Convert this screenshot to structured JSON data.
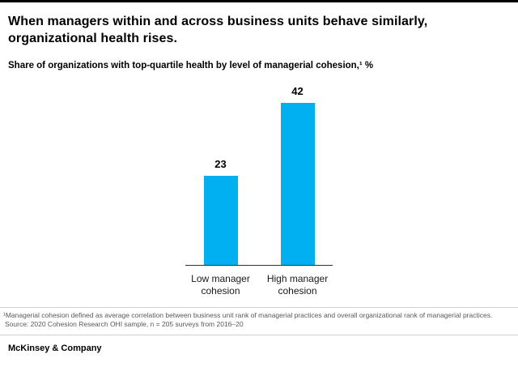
{
  "header": {
    "title": "When managers within and across business units behave similarly, organizational health rises.",
    "subtitle": "Share of organizations with top-quartile health by level of managerial cohesion,¹ %"
  },
  "chart_data": {
    "type": "bar",
    "categories": [
      "Low manager cohesion",
      "High manager cohesion"
    ],
    "values": [
      23,
      42
    ],
    "title": "Share of organizations with top-quartile health by level of managerial cohesion, %",
    "xlabel": "",
    "ylabel": "",
    "ylim": [
      0,
      44
    ],
    "grid": false,
    "legend": false,
    "bar_color": "#00B0F0",
    "value_labels": [
      "23",
      "42"
    ]
  },
  "footnotes": {
    "note1": "¹Managerial cohesion defined as average correlation between business unit rank of managerial practices and overall organizational rank of managerial practices.",
    "source": "Source: 2020 Cohesion Research OHI sample, n = 205 surveys from 2016–20"
  },
  "footer": {
    "brand": "McKinsey & Company"
  }
}
